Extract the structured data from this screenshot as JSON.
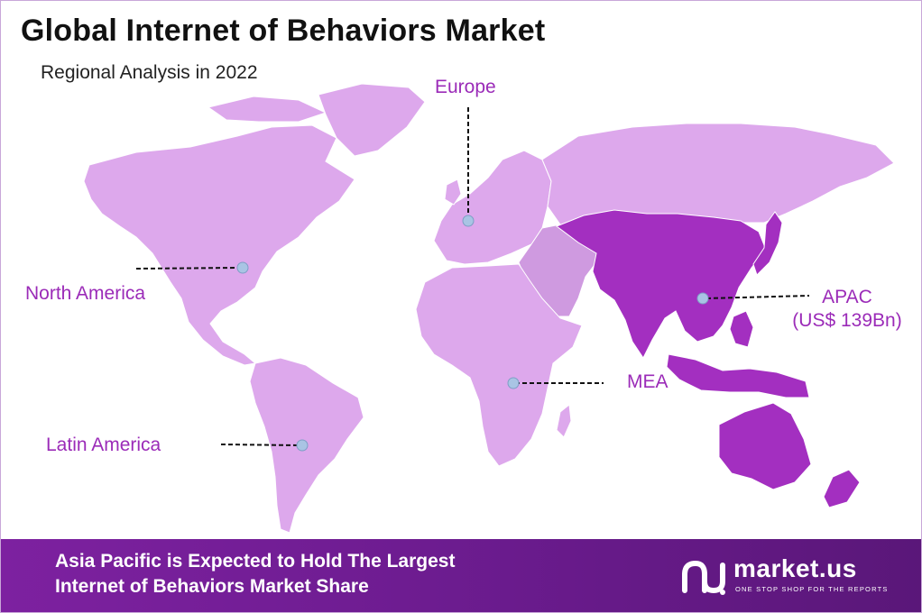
{
  "title": "Global Internet of Behaviors Market",
  "subtitle": "Regional Analysis in 2022",
  "colors": {
    "land_light": "#dda8ec",
    "land_mid": "#cf9ae0",
    "apac": "#a32fc0",
    "apac_dark": "#8c23ab",
    "label": "#9b2bb8",
    "marker": "#a9c4e4",
    "footer": "#7d21a0"
  },
  "regions": [
    {
      "id": "north-america",
      "label": "North America",
      "highlighted": false
    },
    {
      "id": "europe",
      "label": "Europe",
      "highlighted": false
    },
    {
      "id": "apac",
      "label": "APAC",
      "value_label": "(US$ 139Bn)",
      "highlighted": true
    },
    {
      "id": "mea",
      "label": "MEA",
      "highlighted": false
    },
    {
      "id": "latin-america",
      "label": "Latin America",
      "highlighted": false
    }
  ],
  "footer": {
    "line1": "Asia Pacific is Expected to Hold The Largest",
    "line2": "Internet of Behaviors Market Share"
  },
  "brand": {
    "name": "market.us",
    "tagline": "ONE STOP SHOP FOR THE REPORTS",
    "logo_icon": "market-us-logo-icon"
  }
}
